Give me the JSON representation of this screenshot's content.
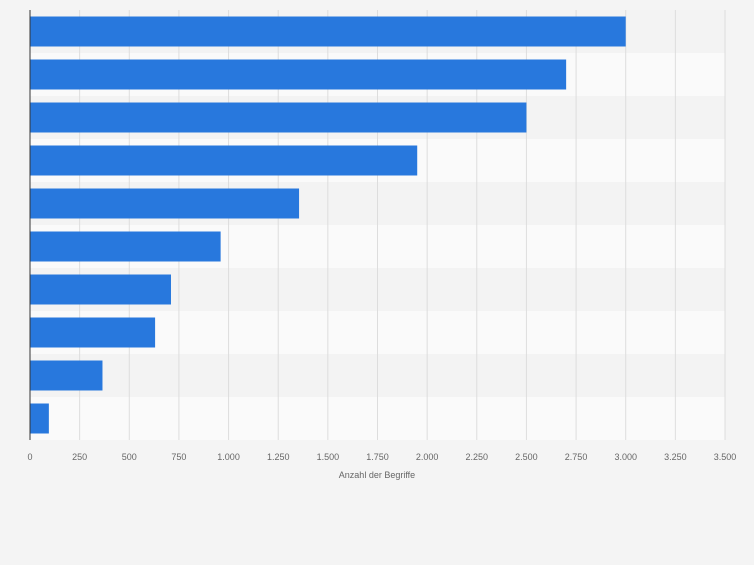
{
  "chart_data": {
    "type": "bar",
    "orientation": "horizontal",
    "categories": [
      "",
      "",
      "",
      "",
      "",
      "",
      "",
      "",
      "",
      ""
    ],
    "values": [
      3000,
      2700,
      2500,
      1950,
      1355,
      960,
      710,
      630,
      365,
      95
    ],
    "xlabel": "Anzahl der Begriffe",
    "ylabel": "",
    "xlim": [
      0,
      3500
    ],
    "xticks": [
      0,
      250,
      500,
      750,
      1000,
      1250,
      1500,
      1750,
      2000,
      2250,
      2500,
      2750,
      3000,
      3250,
      3500
    ],
    "xtick_labels": [
      "0",
      "250",
      "500",
      "750",
      "1.000",
      "1.250",
      "1.500",
      "1.750",
      "2.000",
      "2.250",
      "2.500",
      "2.750",
      "3.000",
      "3.250",
      "3.500"
    ],
    "grid": true,
    "colors": {
      "bar": "#2878dd",
      "band_dark": "#f3f3f3",
      "band_light": "#fafafa",
      "background": "#f4f4f4"
    }
  }
}
